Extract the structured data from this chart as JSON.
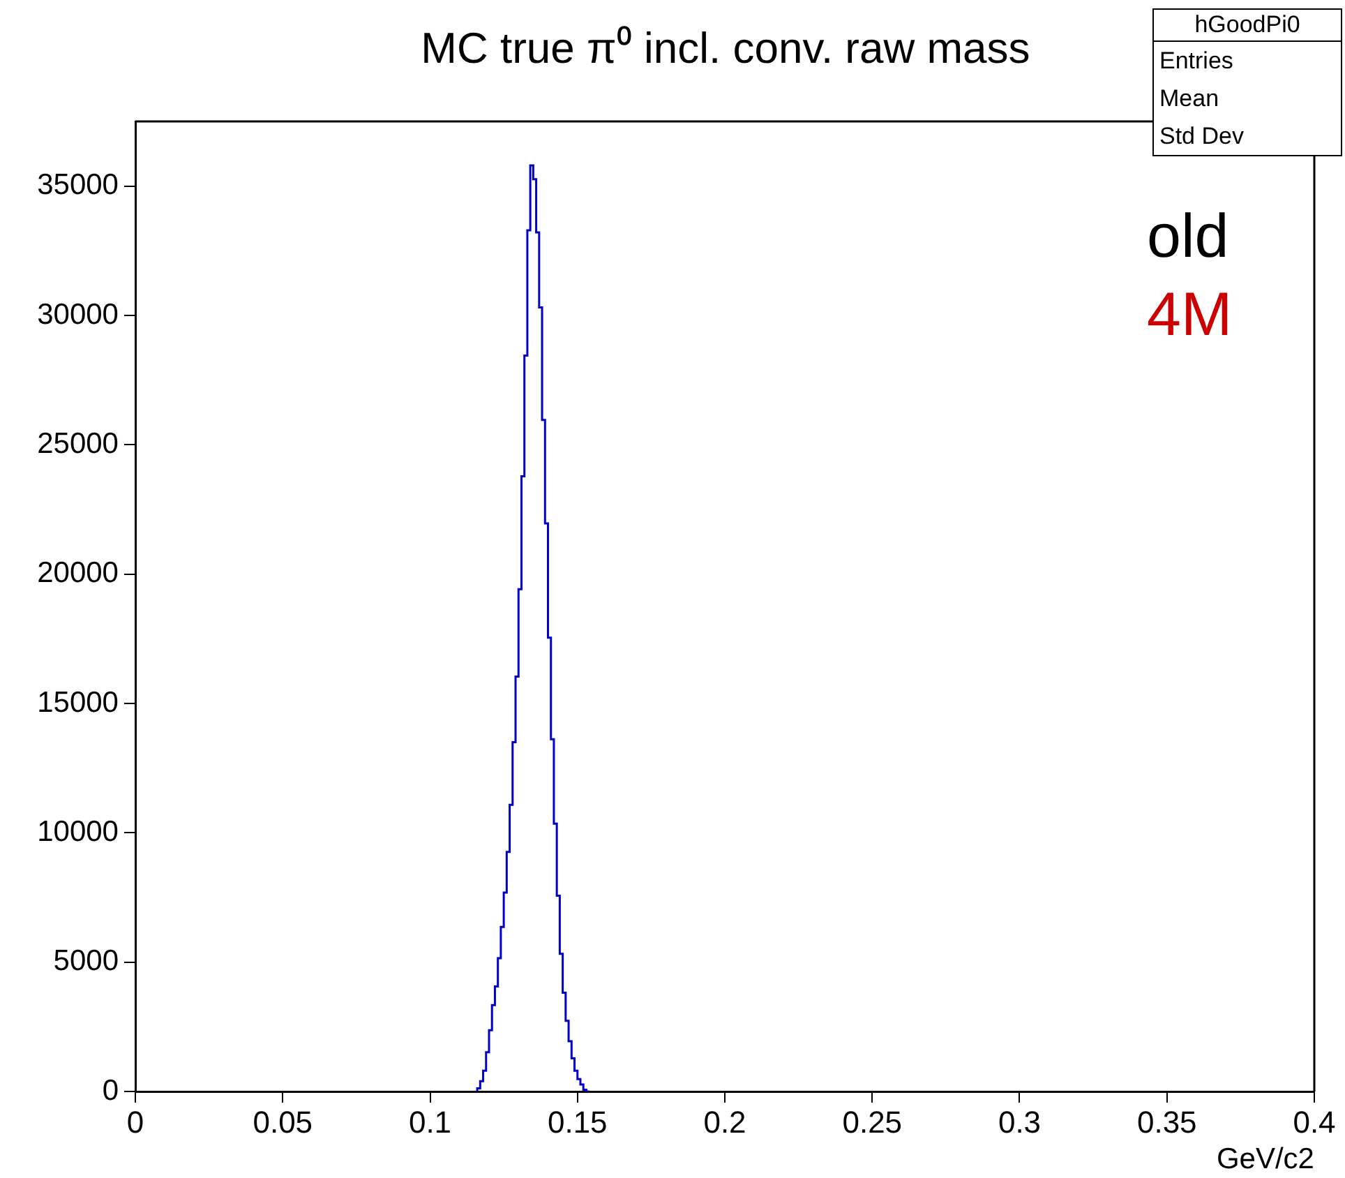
{
  "chart_data": {
    "type": "histogram",
    "title": "MC true π⁰ incl. conv. raw mass",
    "xlabel": "GeV/c2",
    "bins": [
      0.116,
      0.117,
      0.118,
      0.119,
      0.12,
      0.121,
      0.122,
      0.123,
      0.124,
      0.125,
      0.126,
      0.127,
      0.128,
      0.129,
      0.13,
      0.131,
      0.132,
      0.133,
      0.134,
      0.135,
      0.136,
      0.137,
      0.138,
      0.139,
      0.14,
      0.141,
      0.142,
      0.143,
      0.144,
      0.145,
      0.146,
      0.147,
      0.148,
      0.149,
      0.15,
      0.151,
      0.152,
      0.153,
      0.154
    ],
    "values": [
      40,
      120,
      400,
      800,
      1520,
      2370,
      3340,
      4060,
      5150,
      6360,
      7690,
      9260,
      11080,
      13500,
      16040,
      19420,
      23780,
      28450,
      33290,
      35800,
      35270,
      33210,
      30310,
      25960,
      21960,
      17540,
      13620,
      10350,
      7570,
      5320,
      3820,
      2730,
      1940,
      1280,
      800,
      480,
      270,
      70
    ],
    "color": "#0000cc",
    "xlim": [
      0,
      0.4
    ],
    "xticks": [
      0,
      0.05,
      0.1,
      0.15,
      0.2,
      0.25,
      0.3,
      0.35,
      0.4
    ],
    "ylim": [
      0,
      37500
    ],
    "yticks": [
      0,
      5000,
      10000,
      15000,
      20000,
      25000,
      30000,
      35000
    ],
    "grid": false,
    "legend": false,
    "annotations": [
      "old",
      "4M",
      "hGoodPi0",
      "Entries",
      "Mean",
      "Std Dev"
    ]
  }
}
